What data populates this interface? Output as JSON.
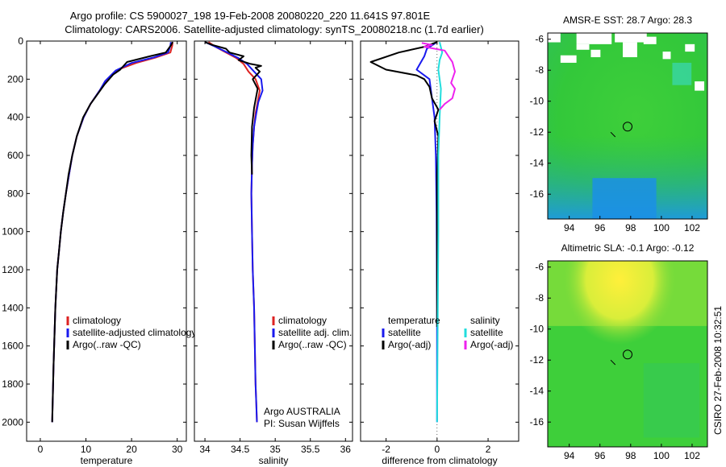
{
  "title_line1": "Argo profile: CS 5900027_198 19-Feb-2008 20080220_220 11.641S 97.801E",
  "title_line2": "Climatology: CARS2006. Satellite-adjusted climatology: synTS_20080218.nc (1.7d earlier)",
  "side_label": "CSIRO 27-Feb-2008 10:32:51",
  "argo_label1": "Argo AUSTRALIA",
  "argo_label2": "PI: Susan Wijffels",
  "colors": {
    "climatology": "#dd2222",
    "satellite": "#1a1aee",
    "argo": "#000000",
    "sat_sal": "#22dddd",
    "argo_sal": "#ee22ee"
  },
  "chart_data": [
    {
      "type": "line",
      "xlabel": "temperature",
      "ylabel": "",
      "xlim": [
        -3,
        32
      ],
      "ylim": [
        2100,
        0
      ],
      "xticks": [
        0,
        10,
        20,
        30
      ],
      "yticks": [
        0,
        200,
        400,
        600,
        800,
        1000,
        1200,
        1400,
        1600,
        1800,
        2000
      ],
      "legend": [
        "climatology",
        "satellite-adjusted climatology",
        "Argo(..raw -QC)"
      ],
      "series": [
        {
          "name": "climatology",
          "color": "#dd2222",
          "x": [
            29.0,
            28.9,
            28.5,
            25.5,
            21.0,
            17.0,
            14.3,
            13.0,
            11.0,
            9.5,
            8.0,
            7.0,
            6.3,
            5.6,
            5.0,
            4.5,
            4.1,
            3.7,
            3.3,
            2.9,
            2.6
          ],
          "y": [
            5,
            25,
            60,
            85,
            115,
            150,
            210,
            260,
            330,
            400,
            500,
            600,
            700,
            800,
            900,
            1000,
            1100,
            1200,
            1400,
            1700,
            2000
          ]
        },
        {
          "name": "satellite-adjusted climatology",
          "color": "#1a1aee",
          "x": [
            28.6,
            28.5,
            28.0,
            25.0,
            20.0,
            16.5,
            14.2,
            13.0,
            11.0,
            9.5,
            8.0,
            7.0,
            6.3,
            5.6,
            5.0,
            4.5,
            4.1,
            3.7,
            3.3,
            2.9,
            2.6
          ],
          "y": [
            5,
            25,
            60,
            85,
            115,
            155,
            210,
            260,
            330,
            400,
            500,
            600,
            700,
            800,
            900,
            1000,
            1100,
            1200,
            1400,
            1700,
            2000
          ]
        },
        {
          "name": "Argo(..raw -QC)",
          "color": "#000000",
          "x": [
            29.0,
            28.7,
            27.5,
            24.0,
            19.0,
            17.5,
            16.0,
            14.0,
            12.8,
            11.0,
            9.4,
            8.0,
            7.0,
            6.2,
            5.6,
            5.0,
            4.5,
            4.1,
            3.7,
            3.3,
            2.9,
            2.6
          ],
          "y": [
            5,
            20,
            60,
            80,
            110,
            150,
            175,
            230,
            270,
            330,
            400,
            500,
            600,
            700,
            800,
            900,
            1000,
            1100,
            1200,
            1400,
            1700,
            2000
          ]
        }
      ]
    },
    {
      "type": "line",
      "xlabel": "salinity",
      "xlim": [
        33.85,
        36.1
      ],
      "ylim": [
        2100,
        0
      ],
      "xticks": [
        34,
        34.5,
        35,
        35.5,
        36
      ],
      "xticklabels": [
        "34",
        "34.5",
        "35",
        "35.5",
        "36"
      ],
      "legend": [
        "climatology",
        "satellite adj. clim.",
        "Argo(..raw -QC)"
      ],
      "series": [
        {
          "name": "climatology",
          "color": "#dd2222",
          "x": [
            34.05,
            34.15,
            34.3,
            34.45,
            34.55,
            34.62,
            34.72,
            34.78,
            34.75,
            34.72,
            34.7,
            34.68,
            34.67,
            34.66,
            34.67,
            34.68,
            34.7,
            34.71,
            34.72,
            34.73,
            34.74
          ],
          "y": [
            5,
            30,
            60,
            90,
            120,
            160,
            200,
            260,
            320,
            380,
            450,
            550,
            650,
            800,
            1000,
            1200,
            1400,
            1600,
            1800,
            1900,
            2000
          ]
        },
        {
          "name": "satellite adj. clim.",
          "color": "#1a1aee",
          "x": [
            34.0,
            34.15,
            34.32,
            34.48,
            34.6,
            34.7,
            34.8,
            34.82,
            34.76,
            34.73,
            34.7,
            34.68,
            34.67,
            34.66,
            34.67,
            34.68,
            34.7,
            34.71,
            34.72,
            34.73,
            34.74
          ],
          "y": [
            5,
            30,
            60,
            90,
            120,
            160,
            200,
            260,
            320,
            380,
            450,
            550,
            650,
            800,
            1000,
            1200,
            1400,
            1600,
            1800,
            1900,
            2000
          ]
        },
        {
          "name": "Argo(..raw -QC)",
          "color": "#000000",
          "x": [
            34.0,
            34.1,
            34.3,
            34.35,
            34.55,
            34.48,
            34.65,
            34.8,
            34.72,
            34.78,
            34.68,
            34.75,
            34.7,
            34.67,
            34.66,
            34.67
          ],
          "y": [
            5,
            20,
            40,
            60,
            80,
            100,
            120,
            130,
            140,
            160,
            200,
            250,
            350,
            450,
            600,
            700
          ]
        }
      ]
    },
    {
      "type": "line",
      "xlabel": "difference from climatology",
      "xlim": [
        -3,
        3.2
      ],
      "ylim": [
        2100,
        0
      ],
      "xticks": [
        -2,
        0,
        2
      ],
      "legend_temperature": [
        "temperature",
        "satellite",
        "Argo(-adj)"
      ],
      "legend_salinity": [
        "salinity",
        "satellite",
        "Argo(-adj)"
      ],
      "series": [
        {
          "name": "satellite",
          "color": "#1a1aee",
          "x": [
            0.0,
            -0.4,
            -0.5,
            -0.8,
            -0.3,
            -0.2,
            -0.1,
            -0.05,
            -0.02,
            0.0,
            0.0
          ],
          "y": [
            5,
            40,
            80,
            150,
            200,
            300,
            400,
            600,
            900,
            1400,
            2000
          ]
        },
        {
          "name": "Argo(-adj)",
          "color": "#000000",
          "x": [
            0.0,
            -0.5,
            -1.5,
            -2.6,
            -2.0,
            -0.8,
            -0.5,
            -0.3,
            -0.2,
            0.05,
            -0.1,
            0.05,
            0.0,
            0.0,
            0.0
          ],
          "y": [
            5,
            30,
            60,
            110,
            150,
            180,
            200,
            240,
            300,
            360,
            420,
            500,
            700,
            1000,
            1500
          ]
        },
        {
          "name": "satellite",
          "color": "#22dddd",
          "x": [
            0.1,
            0.2,
            0.1,
            0.05,
            0.15,
            0.1,
            0.05,
            0.05,
            0.0
          ],
          "y": [
            5,
            60,
            100,
            150,
            250,
            400,
            600,
            1000,
            2000
          ]
        },
        {
          "name": "Argo(-adj)",
          "color": "#ee22ee",
          "x": [
            -0.6,
            -0.2,
            -0.5,
            0.3,
            0.5,
            0.6,
            0.7,
            0.6,
            0.55,
            0.7,
            0.6,
            0.3,
            0.1
          ],
          "y": [
            10,
            20,
            30,
            50,
            90,
            110,
            160,
            200,
            220,
            250,
            300,
            330,
            360
          ]
        }
      ]
    },
    {
      "type": "heatmap",
      "title": "AMSR-E SST: 28.7 Argo: 28.3",
      "xlim": [
        92.6,
        103
      ],
      "ylim": [
        -17.6,
        -5.6
      ],
      "xticks": [
        94,
        96,
        98,
        100,
        102
      ],
      "yticks": [
        -6,
        -8,
        -10,
        -12,
        -14,
        -16
      ]
    },
    {
      "type": "heatmap",
      "title": "Altimetric SLA: -0.1 Argo: -0.12",
      "xlim": [
        92.6,
        103
      ],
      "ylim": [
        -17.6,
        -5.6
      ],
      "xticks": [
        94,
        96,
        98,
        100,
        102
      ],
      "yticks": [
        -6,
        -8,
        -10,
        -12,
        -14,
        -16
      ]
    }
  ]
}
